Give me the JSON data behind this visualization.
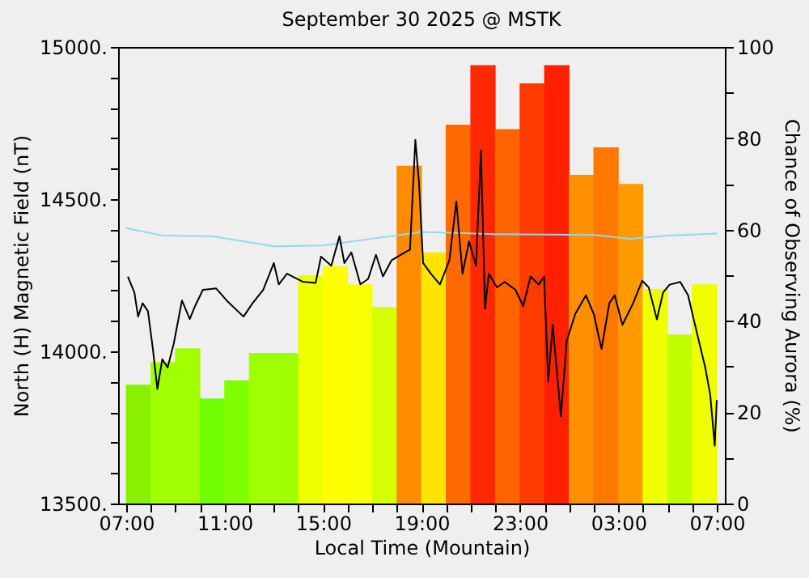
{
  "chart_data": {
    "type": "line",
    "title": "September 30 2025 @ MSTK",
    "xlabel": "Local Time (Mountain)",
    "ylabel": "North (H) Magnetic Field (nT)",
    "y2label": "Chance of Observing Aurora (%)",
    "xlim": [
      "2025-09-30T07:00",
      "2025-10-01T07:00"
    ],
    "xticks": [
      {
        "value": "2025-09-30T07:00",
        "label": "07:00"
      },
      {
        "value": "2025-09-30T08:00",
        "label": null
      },
      {
        "value": "2025-09-30T09:00",
        "label": null
      },
      {
        "value": "2025-09-30T10:00",
        "label": null
      },
      {
        "value": "2025-09-30T11:00",
        "label": "11:00"
      },
      {
        "value": "2025-09-30T12:00",
        "label": null
      },
      {
        "value": "2025-09-30T13:00",
        "label": null
      },
      {
        "value": "2025-09-30T14:00",
        "label": null
      },
      {
        "value": "2025-09-30T15:00",
        "label": "15:00"
      },
      {
        "value": "2025-09-30T16:00",
        "label": null
      },
      {
        "value": "2025-09-30T17:00",
        "label": null
      },
      {
        "value": "2025-09-30T18:00",
        "label": null
      },
      {
        "value": "2025-09-30T19:00",
        "label": "19:00"
      },
      {
        "value": "2025-09-30T20:00",
        "label": null
      },
      {
        "value": "2025-09-30T21:00",
        "label": null
      },
      {
        "value": "2025-09-30T22:00",
        "label": null
      },
      {
        "value": "2025-09-30T23:00",
        "label": "23:00"
      },
      {
        "value": "2025-10-01T00:00",
        "label": null
      },
      {
        "value": "2025-10-01T01:00",
        "label": null
      },
      {
        "value": "2025-10-01T02:00",
        "label": null
      },
      {
        "value": "2025-10-01T03:00",
        "label": "03:00"
      },
      {
        "value": "2025-10-01T04:00",
        "label": null
      },
      {
        "value": "2025-10-01T05:00",
        "label": null
      },
      {
        "value": "2025-10-01T06:00",
        "label": null
      },
      {
        "value": "2025-10-01T07:00",
        "label": "07:00"
      }
    ],
    "ylim": [
      13500,
      15000
    ],
    "yticks": [
      {
        "value": 13500,
        "label": "13500."
      },
      {
        "value": 13600,
        "label": null
      },
      {
        "value": 13700,
        "label": null
      },
      {
        "value": 13800,
        "label": null
      },
      {
        "value": 13900,
        "label": null
      },
      {
        "value": 14000,
        "label": "14000."
      },
      {
        "value": 14100,
        "label": null
      },
      {
        "value": 14200,
        "label": null
      },
      {
        "value": 14300,
        "label": null
      },
      {
        "value": 14400,
        "label": null
      },
      {
        "value": 14500,
        "label": "14500."
      },
      {
        "value": 14600,
        "label": null
      },
      {
        "value": 14700,
        "label": null
      },
      {
        "value": 14800,
        "label": null
      },
      {
        "value": 14900,
        "label": null
      },
      {
        "value": 15000,
        "label": "15000."
      }
    ],
    "y2lim": [
      0,
      100
    ],
    "y2ticks": [
      0,
      {
        "value": 10,
        "label": null
      },
      20,
      {
        "value": 30,
        "label": null
      },
      40,
      {
        "value": 50,
        "label": null
      },
      60,
      {
        "value": 70,
        "label": null
      },
      80,
      {
        "value": 90,
        "label": null
      },
      100
    ],
    "grid": false,
    "legend": false,
    "series": [
      {
        "type": "bar",
        "axis": "y2",
        "x": [
          "2025-09-30T07:30",
          "2025-09-30T08:30",
          "2025-09-30T09:30",
          "2025-09-30T10:30",
          "2025-09-30T11:30",
          "2025-09-30T12:30",
          "2025-09-30T13:30",
          "2025-09-30T14:30",
          "2025-09-30T15:30",
          "2025-09-30T16:30",
          "2025-09-30T17:30",
          "2025-09-30T18:30",
          "2025-09-30T19:30",
          "2025-09-30T20:30",
          "2025-09-30T21:30",
          "2025-09-30T22:30",
          "2025-09-30T23:30",
          "2025-10-01T00:30",
          "2025-10-01T01:30",
          "2025-10-01T02:30",
          "2025-10-01T03:30",
          "2025-10-01T04:30",
          "2025-10-01T05:30",
          "2025-10-01T06:30"
        ],
        "values": [
          26,
          31,
          34,
          23,
          27,
          33,
          33,
          50,
          52,
          48,
          43,
          74,
          55,
          83,
          96,
          82,
          92,
          96,
          72,
          78,
          70,
          47,
          37,
          48
        ],
        "colors": [
          "#88f000",
          "#a0ff00",
          "#a0ff00",
          "#70ff00",
          "#80ff00",
          "#a0ff00",
          "#a0ff00",
          "#f0ff00",
          "#ffff00",
          "#f8ff00",
          "#d4ff00",
          "#ff8c00",
          "#ffe400",
          "#ff6a00",
          "#ff2800",
          "#ff6400",
          "#ff3c00",
          "#ff2000",
          "#ff9000",
          "#ff7800",
          "#ff9a00",
          "#f0ff00",
          "#bfff00",
          "#f0ff00"
        ]
      },
      {
        "color": "#8fd8f0",
        "x": [
          "2025-09-30T07:00",
          "2025-09-30T08:30",
          "2025-09-30T10:30",
          "2025-09-30T13:00",
          "2025-09-30T15:00",
          "2025-09-30T17:00",
          "2025-09-30T19:00",
          "2025-09-30T22:00",
          "2025-10-01T02:00",
          "2025-10-01T03:30",
          "2025-10-01T05:00",
          "2025-10-01T07:00"
        ],
        "values": [
          14405,
          14380,
          14378,
          14345,
          14348,
          14370,
          14392,
          14385,
          14382,
          14370,
          14380,
          14387
        ]
      },
      {
        "color": "#000000",
        "x": [
          "2025-09-30T07:04",
          "2025-09-30T07:20",
          "2025-09-30T07:29",
          "2025-09-30T07:40",
          "2025-09-30T07:53",
          "2025-09-30T08:05",
          "2025-09-30T08:16",
          "2025-09-30T08:28",
          "2025-09-30T08:41",
          "2025-09-30T08:56",
          "2025-09-30T09:16",
          "2025-09-30T09:35",
          "2025-09-30T09:48",
          "2025-09-30T10:07",
          "2025-09-30T10:39",
          "2025-09-30T11:05",
          "2025-09-30T11:46",
          "2025-09-30T12:08",
          "2025-09-30T12:34",
          "2025-09-30T13:00",
          "2025-09-30T13:12",
          "2025-09-30T13:32",
          "2025-09-30T14:10",
          "2025-09-30T14:42",
          "2025-09-30T14:55",
          "2025-09-30T15:20",
          "2025-09-30T15:40",
          "2025-09-30T15:52",
          "2025-09-30T16:09",
          "2025-09-30T16:31",
          "2025-09-30T16:50",
          "2025-09-30T17:09",
          "2025-09-30T17:26",
          "2025-09-30T17:47",
          "2025-09-30T18:19",
          "2025-09-30T18:32",
          "2025-09-30T18:45",
          "2025-09-30T18:54",
          "2025-09-30T19:04",
          "2025-09-30T19:23",
          "2025-09-30T19:45",
          "2025-09-30T20:08",
          "2025-09-30T20:25",
          "2025-09-30T20:40",
          "2025-09-30T20:56",
          "2025-09-30T21:13",
          "2025-09-30T21:25",
          "2025-09-30T21:35",
          "2025-09-30T21:44",
          "2025-09-30T22:04",
          "2025-09-30T22:23",
          "2025-09-30T22:49",
          "2025-09-30T23:08",
          "2025-09-30T23:26",
          "2025-09-30T23:46",
          "2025-09-30T23:59",
          "2025-10-01T00:09",
          "2025-10-01T00:20",
          "2025-10-01T00:40",
          "2025-10-01T00:54",
          "2025-10-01T01:15",
          "2025-10-01T01:41",
          "2025-10-01T02:00",
          "2025-10-01T02:19",
          "2025-10-01T02:38",
          "2025-10-01T02:51",
          "2025-10-01T03:10",
          "2025-10-01T03:36",
          "2025-10-01T03:58",
          "2025-10-01T04:14",
          "2025-10-01T04:34",
          "2025-10-01T04:49",
          "2025-10-01T05:05",
          "2025-10-01T05:31",
          "2025-10-01T05:50",
          "2025-10-01T06:10",
          "2025-10-01T06:32",
          "2025-10-01T06:44",
          "2025-10-01T06:55",
          "2025-10-01T07:00"
        ],
        "values": [
          14246,
          14193,
          14114,
          14158,
          14132,
          14008,
          13876,
          13974,
          13947,
          14026,
          14167,
          14106,
          14149,
          14202,
          14207,
          14167,
          14114,
          14158,
          14202,
          14290,
          14220,
          14255,
          14229,
          14225,
          14311,
          14281,
          14378,
          14290,
          14325,
          14220,
          14238,
          14317,
          14246,
          14299,
          14325,
          14334,
          14695,
          14554,
          14290,
          14255,
          14220,
          14299,
          14493,
          14255,
          14361,
          14281,
          14660,
          14140,
          14255,
          14210,
          14228,
          14202,
          14149,
          14246,
          14219,
          14246,
          13902,
          14087,
          13787,
          14034,
          14123,
          14184,
          14123,
          14008,
          14158,
          14184,
          14087,
          14158,
          14232,
          14210,
          14105,
          14193,
          14219,
          14228,
          14184,
          14070,
          13946,
          13858,
          13690,
          13840
        ]
      }
    ]
  }
}
